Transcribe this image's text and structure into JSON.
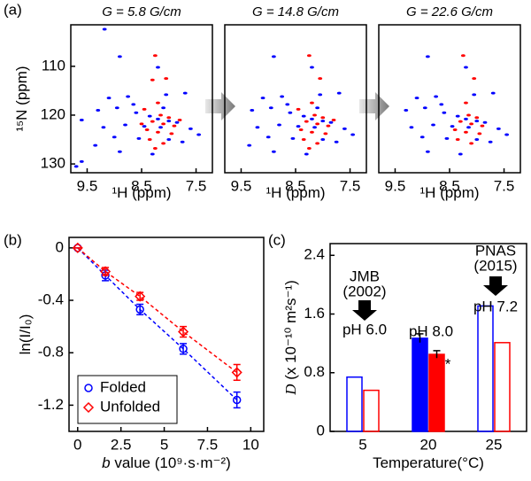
{
  "panel_labels": [
    "(a)",
    "(b)",
    "(c)"
  ],
  "chart_data": [
    {
      "type": "scatter",
      "title": "G = 5.8 G/cm",
      "x_label": "¹H (ppm)",
      "y_label": "¹⁵N (ppm)",
      "xlim": [
        9.8,
        7.2
      ],
      "xticks": [
        9.5,
        8.5,
        7.5
      ],
      "ylim": [
        131.8,
        101.5
      ],
      "yticks": [
        110,
        120,
        130
      ],
      "series": [
        {
          "color": "#0000ff",
          "x": [
            9.18,
            8.9,
            8.2,
            9.1,
            8.75,
            8.05,
            7.7,
            9.3,
            8.95,
            8.6,
            8.35,
            8.2,
            8.0,
            7.85,
            9.6,
            9.2,
            8.8,
            8.45,
            8.15,
            7.6,
            9.0,
            8.55,
            8.0,
            7.75,
            9.35,
            8.9,
            8.3,
            9.7,
            9.6,
            7.45,
            8.65,
            8.1
          ],
          "values": [
            102.4,
            108.0,
            110.2,
            116.5,
            116.2,
            115.8,
            115.5,
            119.0,
            118.5,
            119.5,
            120.2,
            120.8,
            121.2,
            121.5,
            121.0,
            122.5,
            122.0,
            122.3,
            122.5,
            122.8,
            124.5,
            124.8,
            125.0,
            125.5,
            126.2,
            127.5,
            128.0,
            130.5,
            129.5,
            124.0,
            117.8,
            118.5
          ]
        },
        {
          "color": "#ff0000",
          "x": [
            8.25,
            8.05,
            8.3,
            8.2,
            8.45,
            8.15,
            8.0,
            8.3,
            8.1,
            7.9,
            8.4,
            8.2,
            7.95,
            8.35,
            8.1,
            8.25,
            7.8,
            8.5
          ],
          "values": [
            107.8,
            112.5,
            112.8,
            117.5,
            118.8,
            120.0,
            120.5,
            121.3,
            121.8,
            122.2,
            123.0,
            123.5,
            123.8,
            125.0,
            125.8,
            126.8,
            121.0,
            121.8
          ]
        }
      ]
    },
    {
      "type": "scatter",
      "title": "G = 14.8 G/cm",
      "x_label": "¹H (ppm)",
      "xlim": [
        9.8,
        7.2
      ],
      "xticks": [
        9.5,
        8.5,
        7.5
      ],
      "ylim": [
        131.8,
        101.5
      ],
      "series": [
        {
          "color": "#0000ff",
          "x": [
            8.9,
            8.2,
            9.1,
            8.75,
            8.05,
            7.7,
            9.3,
            8.95,
            8.6,
            8.35,
            8.2,
            8.0,
            7.85,
            9.2,
            8.8,
            8.45,
            8.15,
            7.6,
            9.0,
            8.55,
            8.0,
            7.75,
            9.35,
            8.9,
            8.3,
            7.45,
            8.65,
            8.1
          ],
          "values": [
            108.0,
            110.2,
            116.5,
            116.2,
            115.8,
            115.5,
            119.0,
            118.5,
            119.5,
            120.2,
            120.8,
            121.2,
            121.5,
            122.5,
            122.0,
            122.3,
            122.5,
            122.8,
            124.5,
            124.8,
            125.0,
            125.5,
            126.2,
            127.5,
            128.0,
            124.0,
            117.8,
            118.5
          ]
        },
        {
          "color": "#ff0000",
          "x": [
            8.25,
            8.05,
            8.2,
            8.45,
            8.15,
            8.0,
            8.3,
            8.1,
            7.9,
            8.4,
            8.2,
            7.95,
            8.35,
            8.1,
            8.25,
            7.8
          ],
          "values": [
            107.8,
            112.5,
            117.5,
            118.8,
            120.0,
            120.5,
            121.3,
            121.8,
            122.2,
            123.0,
            123.5,
            123.8,
            125.0,
            125.8,
            126.8,
            121.0
          ]
        }
      ]
    },
    {
      "type": "scatter",
      "title": "G = 22.6 G/cm",
      "x_label": "¹H (ppm)",
      "xlim": [
        9.8,
        7.2
      ],
      "xticks": [
        9.5,
        8.5,
        7.5
      ],
      "ylim": [
        131.8,
        101.5
      ],
      "series": [
        {
          "color": "#0000ff",
          "x": [
            8.9,
            8.2,
            9.1,
            8.75,
            8.05,
            7.7,
            9.3,
            8.95,
            8.6,
            8.35,
            8.2,
            8.0,
            7.85,
            9.2,
            8.8,
            8.45,
            8.15,
            7.6,
            9.0,
            8.55,
            8.0,
            7.75,
            8.9,
            8.3,
            7.45,
            8.65
          ],
          "values": [
            108.0,
            110.2,
            116.5,
            116.2,
            115.8,
            115.5,
            119.0,
            118.5,
            119.5,
            120.2,
            120.8,
            121.2,
            121.5,
            122.5,
            122.0,
            122.3,
            122.5,
            122.8,
            124.5,
            124.8,
            125.0,
            125.5,
            127.5,
            128.0,
            124.0,
            117.8
          ]
        },
        {
          "color": "#ff0000",
          "x": [
            8.25,
            8.05,
            8.2,
            8.15,
            8.0,
            8.3,
            8.1,
            7.9,
            8.4,
            8.2,
            7.95,
            8.35,
            8.1
          ],
          "values": [
            107.8,
            112.5,
            117.5,
            120.0,
            120.5,
            121.3,
            121.8,
            122.2,
            123.0,
            123.5,
            123.8,
            125.0,
            125.8
          ]
        }
      ]
    },
    {
      "type": "line",
      "x_label_symbol": "b",
      "x_label": " value (10⁹·s·m⁻²)",
      "y_label": "ln(I/I₀)",
      "xlim": [
        -0.5,
        10.75
      ],
      "xticks": [
        0,
        2.5,
        5,
        7.5,
        10
      ],
      "ylim": [
        -1.4,
        0.08
      ],
      "yticks": [
        0,
        -0.4,
        -0.8,
        -1.2
      ],
      "x": [
        0,
        1.6,
        3.6,
        6.1,
        9.2
      ],
      "series": [
        {
          "name": "Folded",
          "color": "#0000ff",
          "marker": "circle",
          "values": [
            0,
            -0.21,
            -0.47,
            -0.77,
            -1.16
          ],
          "errors": [
            0,
            0.04,
            0.04,
            0.04,
            0.06
          ]
        },
        {
          "name": "Unfolded",
          "color": "#ff0000",
          "marker": "diamond",
          "values": [
            0,
            -0.18,
            -0.37,
            -0.64,
            -0.95
          ],
          "errors": [
            0,
            0.03,
            0.03,
            0.04,
            0.06
          ]
        }
      ]
    },
    {
      "type": "bar",
      "x_label": "Temperature(°C)",
      "y_label_symbol": "D",
      "y_label": " (x 10⁻¹⁰ m²s⁻¹)",
      "categories": [
        "5",
        "20",
        "25"
      ],
      "ylim": [
        0,
        2.56
      ],
      "yticks": [
        0,
        0.8,
        1.6,
        2.4
      ],
      "filled": [
        false,
        true,
        false
      ],
      "series": [
        {
          "color": "#0000ff",
          "values": [
            0.74,
            1.27,
            1.71
          ],
          "errors": [
            null,
            0.06,
            null
          ]
        },
        {
          "color": "#ff0000",
          "values": [
            0.56,
            1.05,
            1.21
          ],
          "errors": [
            null,
            0.05,
            null
          ]
        }
      ],
      "annotations": [
        "JMB",
        "(2002)",
        "pH 6.0",
        "pH 8.0",
        "PNAS",
        "(2015)",
        "pH 7.2",
        "*"
      ]
    }
  ]
}
